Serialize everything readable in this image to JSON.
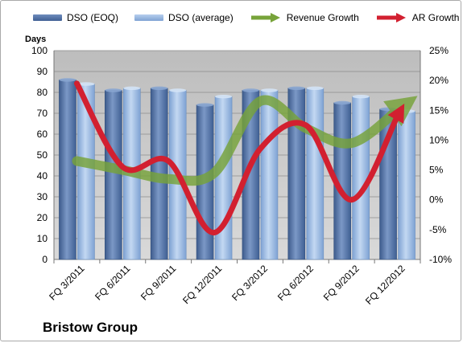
{
  "chart_data": {
    "type": "bar",
    "title": "",
    "company_label": "Bristow Group",
    "ylabel": "Days",
    "categories": [
      "FQ 3/2011",
      "FQ 6/2011",
      "FQ 9/2011",
      "FQ 12/2011",
      "FQ 3/2012",
      "FQ 6/2012",
      "FQ 9/2012",
      "FQ 12/2012"
    ],
    "ylim": [
      0,
      100
    ],
    "yticks": [
      0,
      10,
      20,
      30,
      40,
      50,
      60,
      70,
      80,
      90,
      100
    ],
    "y2lim": [
      -10,
      25
    ],
    "y2ticks": [
      "-10%",
      "-5%",
      "0%",
      "5%",
      "10%",
      "15%",
      "20%",
      "25%"
    ],
    "y2tick_values": [
      -10,
      -5,
      0,
      5,
      10,
      15,
      20,
      25
    ],
    "grid": true,
    "legend_position": "top",
    "series": [
      {
        "name": "DSO (EOQ)",
        "type": "bar",
        "axis": "left",
        "color": "#4f6fa3",
        "values": [
          86,
          81,
          82,
          74,
          81,
          82,
          75,
          72
        ]
      },
      {
        "name": "DSO (average)",
        "type": "bar",
        "axis": "left",
        "color": "#8fb0dc",
        "values": [
          84,
          82,
          81,
          78,
          81,
          82,
          78,
          71
        ]
      },
      {
        "name": "Revenue Growth",
        "type": "line",
        "axis": "right",
        "color": "#77a33a",
        "values": [
          6.5,
          5.0,
          3.5,
          4.5,
          16.5,
          12.0,
          9.5,
          15.0
        ]
      },
      {
        "name": "AR Growth",
        "type": "line",
        "axis": "right",
        "color": "#d22030",
        "values": [
          19.5,
          5.5,
          6.5,
          -5.5,
          8.5,
          12.5,
          0.0,
          14.0
        ]
      }
    ]
  }
}
